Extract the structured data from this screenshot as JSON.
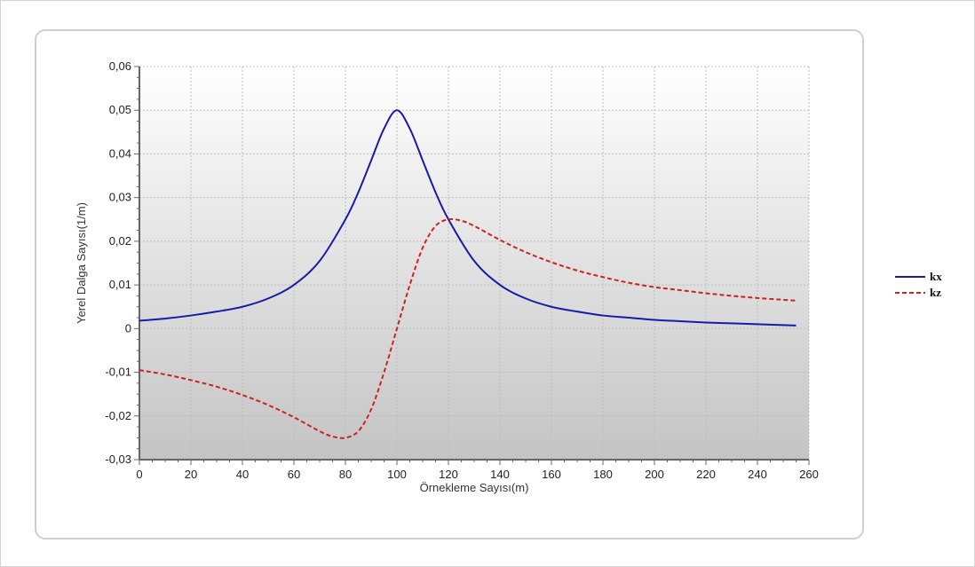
{
  "chart_data": {
    "type": "line",
    "title": "",
    "xlabel": "Örnekleme Sayısı(m)",
    "ylabel": "Yerel Dalga Sayısı(1/m)",
    "xlim": [
      0,
      260
    ],
    "ylim": [
      -0.03,
      0.06
    ],
    "x_ticks": [
      0,
      20,
      40,
      60,
      80,
      100,
      120,
      140,
      160,
      180,
      200,
      220,
      240,
      260
    ],
    "x_tick_labels": [
      "0",
      "20",
      "40",
      "60",
      "80",
      "100",
      "120",
      "140",
      "160",
      "180",
      "200",
      "220",
      "240",
      "260"
    ],
    "y_ticks": [
      -0.03,
      -0.02,
      -0.01,
      0,
      0.01,
      0.02,
      0.03,
      0.04,
      0.05,
      0.06
    ],
    "y_tick_labels": [
      "-0,03",
      "-0,02",
      "-0,01",
      "0",
      "0,01",
      "0,02",
      "0,03",
      "0,04",
      "0,05",
      "0,06"
    ],
    "grid": true,
    "legend_position": "right",
    "series": [
      {
        "name": "kx",
        "color": "#1a1aaa",
        "dash": "solid",
        "x": [
          0,
          10,
          20,
          30,
          40,
          50,
          60,
          70,
          80,
          85,
          90,
          95,
          100,
          105,
          110,
          115,
          120,
          130,
          140,
          150,
          160,
          170,
          180,
          190,
          200,
          210,
          220,
          230,
          240,
          250,
          255
        ],
        "y": [
          0.0018,
          0.0023,
          0.003,
          0.0039,
          0.005,
          0.0069,
          0.01,
          0.0155,
          0.025,
          0.0312,
          0.0385,
          0.0458,
          0.05,
          0.0458,
          0.0385,
          0.0312,
          0.025,
          0.0155,
          0.01,
          0.0069,
          0.005,
          0.0039,
          0.003,
          0.0025,
          0.002,
          0.0017,
          0.0014,
          0.0012,
          0.001,
          0.0008,
          0.0007
        ]
      },
      {
        "name": "kz",
        "color": "#cc2222",
        "dash": "dashed",
        "x": [
          0,
          10,
          20,
          30,
          40,
          50,
          60,
          70,
          75,
          80,
          85,
          90,
          95,
          100,
          105,
          110,
          115,
          120,
          125,
          130,
          140,
          150,
          160,
          170,
          180,
          190,
          200,
          210,
          220,
          230,
          240,
          250,
          255
        ],
        "y": [
          -0.0095,
          -0.0105,
          -0.0118,
          -0.0133,
          -0.0152,
          -0.0175,
          -0.0203,
          -0.0235,
          -0.0247,
          -0.025,
          -0.0235,
          -0.0185,
          -0.01,
          0.0,
          0.01,
          0.0185,
          0.0235,
          0.025,
          0.0247,
          0.0235,
          0.0203,
          0.0175,
          0.0152,
          0.0133,
          0.0118,
          0.0105,
          0.0095,
          0.0088,
          0.0081,
          0.0075,
          0.007,
          0.0066,
          0.0064
        ]
      }
    ]
  }
}
